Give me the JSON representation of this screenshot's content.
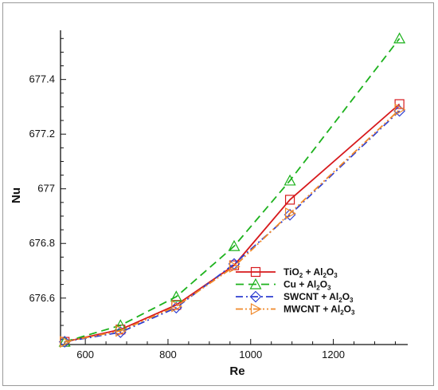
{
  "chart_data": {
    "type": "line",
    "xlabel": "Re",
    "ylabel": "Nu",
    "xlim": [
      540,
      1380
    ],
    "ylim": [
      676.43,
      677.58
    ],
    "xticks": [
      600,
      800,
      1000,
      1200
    ],
    "xtick_labels": [
      "600",
      "800",
      "1000",
      "1200"
    ],
    "yticks": [
      676.6,
      676.8,
      677.0,
      677.2,
      677.4
    ],
    "ytick_labels": [
      "676.6",
      "676.8",
      "677",
      "677.2",
      "677.4"
    ],
    "grid": false,
    "legend_position": "bottom-right",
    "series": [
      {
        "name": "TiO2 + Al2O3",
        "legend": {
          "a": "TiO",
          "a_sub": "2",
          "b": " + Al",
          "b_sub": "2",
          "c": "O",
          "c_sub": "3"
        },
        "color": "#d7191c",
        "dash": "solid",
        "marker": "square",
        "x": [
          550,
          685,
          820,
          960,
          1095,
          1360
        ],
        "y": [
          676.44,
          676.485,
          676.575,
          676.72,
          676.96,
          677.31
        ]
      },
      {
        "name": "Cu + Al2O3",
        "legend": {
          "a": "Cu + Al",
          "a_sub": "2",
          "b": "O",
          "b_sub": "3",
          "c": "",
          "c_sub": ""
        },
        "color": "#1db21d",
        "dash": "long-dash",
        "marker": "triangle",
        "x": [
          550,
          685,
          820,
          960,
          1095,
          1360
        ],
        "y": [
          676.44,
          676.5,
          676.605,
          676.79,
          677.03,
          677.55
        ]
      },
      {
        "name": "SWCNT + Al2O3",
        "legend": {
          "a": "SWCNT + Al",
          "a_sub": "2",
          "b": "O",
          "b_sub": "3",
          "c": "",
          "c_sub": ""
        },
        "color": "#2f3fd1",
        "dash": "dash-dot",
        "marker": "diamond",
        "x": [
          550,
          685,
          820,
          960,
          1095,
          1360
        ],
        "y": [
          676.44,
          676.475,
          676.565,
          676.725,
          676.905,
          677.285
        ]
      },
      {
        "name": "MWCNT + Al2O3",
        "legend": {
          "a": "MWCNT + Al",
          "a_sub": "2",
          "b": "O",
          "b_sub": "3",
          "c": "",
          "c_sub": ""
        },
        "color": "#f0892a",
        "dash": "dash-dot-dot",
        "marker": "triangle-right",
        "x": [
          550,
          685,
          820,
          960,
          1095,
          1360
        ],
        "y": [
          676.44,
          676.48,
          676.57,
          676.715,
          676.91,
          677.29
        ]
      }
    ]
  }
}
